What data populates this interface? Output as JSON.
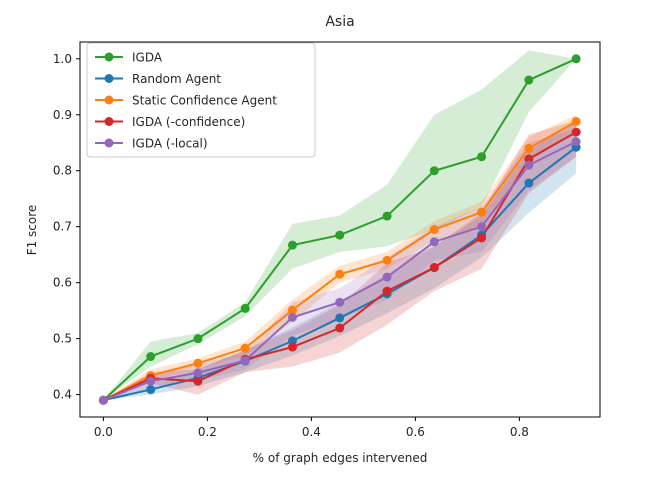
{
  "chart_data": {
    "type": "line",
    "title": "Asia",
    "xlabel": "% of graph edges intervened",
    "ylabel": "F1 score",
    "xlim": [
      -0.045,
      0.955
    ],
    "ylim": [
      0.36,
      1.03
    ],
    "x_ticks": [
      0.0,
      0.2,
      0.4,
      0.6,
      0.8
    ],
    "x_tick_labels": [
      "0.0",
      "0.2",
      "0.4",
      "0.6",
      "0.8"
    ],
    "y_ticks": [
      0.4,
      0.5,
      0.6,
      0.7,
      0.8,
      0.9,
      1.0
    ],
    "y_tick_labels": [
      "0.4",
      "0.5",
      "0.6",
      "0.7",
      "0.8",
      "0.9",
      "1.0"
    ],
    "grid": false,
    "legend_position": "upper-left",
    "x": [
      0.0,
      0.0909,
      0.1818,
      0.2727,
      0.3636,
      0.4545,
      0.5455,
      0.6364,
      0.7273,
      0.8182,
      0.9091
    ],
    "series": [
      {
        "name": "IGDA",
        "color": "#2ca02c",
        "values": [
          0.39,
          0.468,
          0.5,
          0.554,
          0.667,
          0.685,
          0.719,
          0.8,
          0.825,
          0.962,
          1.0
        ],
        "band_low": [
          0.39,
          0.45,
          0.49,
          0.54,
          0.625,
          0.655,
          0.665,
          0.695,
          0.735,
          0.905,
          1.0
        ],
        "band_high": [
          0.39,
          0.495,
          0.51,
          0.565,
          0.705,
          0.72,
          0.775,
          0.9,
          0.945,
          1.015,
          1.0
        ]
      },
      {
        "name": "Random Agent",
        "color": "#1f77b4",
        "values": [
          0.39,
          0.409,
          0.43,
          0.46,
          0.496,
          0.537,
          0.58,
          0.627,
          0.685,
          0.778,
          0.842
        ],
        "band_low": [
          0.39,
          0.4,
          0.415,
          0.44,
          0.47,
          0.505,
          0.545,
          0.59,
          0.645,
          0.725,
          0.795
        ],
        "band_high": [
          0.39,
          0.42,
          0.445,
          0.48,
          0.52,
          0.565,
          0.615,
          0.665,
          0.72,
          0.835,
          0.89
        ]
      },
      {
        "name": "Static Confidence Agent",
        "color": "#ff7f0e",
        "values": [
          0.39,
          0.434,
          0.456,
          0.483,
          0.551,
          0.615,
          0.64,
          0.695,
          0.726,
          0.84,
          0.888
        ],
        "band_low": [
          0.39,
          0.425,
          0.445,
          0.47,
          0.53,
          0.6,
          0.625,
          0.675,
          0.7,
          0.815,
          0.875
        ],
        "band_high": [
          0.39,
          0.445,
          0.465,
          0.495,
          0.57,
          0.63,
          0.655,
          0.71,
          0.745,
          0.86,
          0.9
        ]
      },
      {
        "name": "IGDA (-confidence)",
        "color": "#d62728",
        "values": [
          0.39,
          0.429,
          0.424,
          0.463,
          0.485,
          0.519,
          0.585,
          0.627,
          0.68,
          0.821,
          0.869
        ],
        "band_low": [
          0.39,
          0.42,
          0.4,
          0.44,
          0.45,
          0.475,
          0.525,
          0.585,
          0.625,
          0.76,
          0.825
        ],
        "band_high": [
          0.39,
          0.44,
          0.445,
          0.48,
          0.515,
          0.56,
          0.635,
          0.665,
          0.725,
          0.865,
          0.89
        ]
      },
      {
        "name": "IGDA (-local)",
        "color": "#9467bd",
        "values": [
          0.39,
          0.424,
          0.439,
          0.461,
          0.538,
          0.565,
          0.61,
          0.673,
          0.7,
          0.81,
          0.852
        ],
        "band_low": [
          0.39,
          0.41,
          0.425,
          0.445,
          0.505,
          0.535,
          0.57,
          0.64,
          0.655,
          0.765,
          0.825
        ],
        "band_high": [
          0.39,
          0.435,
          0.455,
          0.475,
          0.565,
          0.59,
          0.645,
          0.7,
          0.735,
          0.85,
          0.875
        ]
      }
    ]
  }
}
